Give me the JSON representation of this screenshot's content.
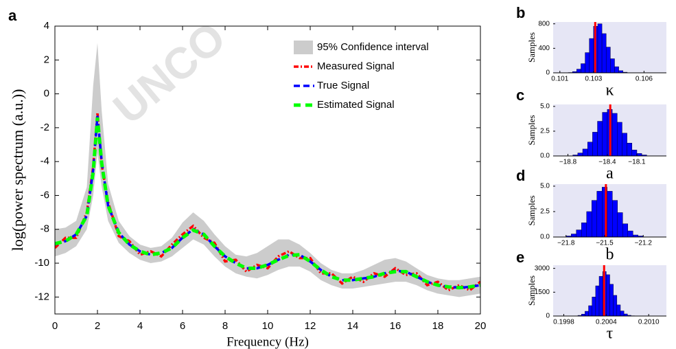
{
  "chart_data": [
    {
      "type": "line",
      "panel_label": "a",
      "watermark": "UNCO",
      "xlabel": "Frequency (Hz)",
      "ylabel": "log(power spectrum (a.u.))",
      "xlim": [
        0,
        20
      ],
      "ylim": [
        -13,
        4
      ],
      "xticks": [
        0,
        2,
        4,
        6,
        8,
        10,
        12,
        14,
        16,
        18,
        20
      ],
      "yticks": [
        -12,
        -10,
        -8,
        -6,
        -4,
        -2,
        0,
        2,
        4
      ],
      "legend": "upper right",
      "x": [
        0,
        0.5,
        1,
        1.5,
        1.8,
        2,
        2.2,
        2.5,
        3,
        3.5,
        4,
        4.5,
        5,
        5.5,
        6,
        6.5,
        7,
        7.5,
        8,
        8.5,
        9,
        9.5,
        10,
        10.5,
        11,
        11.5,
        12,
        12.5,
        13,
        13.5,
        14,
        14.5,
        15,
        15.5,
        16,
        16.5,
        17,
        17.5,
        18,
        18.5,
        19,
        19.5,
        20
      ],
      "band": {
        "name": "95% Confidence interval",
        "color": "#cccccc",
        "upper": [
          -8.0,
          -7.9,
          -7.5,
          -5.5,
          0.5,
          3.0,
          -1.0,
          -5.3,
          -7.5,
          -8.4,
          -8.9,
          -9.1,
          -9.0,
          -8.5,
          -7.6,
          -7.0,
          -7.5,
          -8.3,
          -9.0,
          -9.5,
          -9.6,
          -9.4,
          -9.0,
          -8.6,
          -8.6,
          -8.9,
          -9.4,
          -10.0,
          -10.4,
          -10.6,
          -10.6,
          -10.4,
          -10.1,
          -9.8,
          -9.7,
          -9.9,
          -10.3,
          -10.7,
          -10.9,
          -11.0,
          -11.0,
          -10.9,
          -10.8
        ],
        "lower": [
          -9.6,
          -9.4,
          -9.0,
          -8.0,
          -6.0,
          -3.5,
          -5.5,
          -7.5,
          -8.8,
          -9.4,
          -9.8,
          -10.0,
          -9.9,
          -9.6,
          -9.1,
          -8.6,
          -8.9,
          -9.6,
          -10.2,
          -10.6,
          -10.8,
          -10.9,
          -10.7,
          -10.4,
          -10.2,
          -10.2,
          -10.5,
          -11.0,
          -11.3,
          -11.5,
          -11.5,
          -11.4,
          -11.3,
          -11.2,
          -11.1,
          -11.1,
          -11.3,
          -11.6,
          -11.8,
          -11.9,
          -12.0,
          -11.9,
          -11.8
        ]
      },
      "series": [
        {
          "name": "Measured Signal",
          "color": "#ff0000",
          "values": [
            -9.1,
            -8.5,
            -8.5,
            -7.0,
            -4.3,
            -1.1,
            -4.2,
            -6.4,
            -8.4,
            -8.7,
            -9.5,
            -9.3,
            -9.6,
            -8.9,
            -8.3,
            -7.8,
            -8.5,
            -8.8,
            -9.9,
            -9.8,
            -10.5,
            -10.1,
            -10.3,
            -9.6,
            -9.3,
            -9.7,
            -9.7,
            -10.6,
            -10.6,
            -11.2,
            -10.8,
            -11.1,
            -10.6,
            -10.8,
            -10.3,
            -10.7,
            -10.6,
            -11.3,
            -11.1,
            -11.6,
            -11.3,
            -11.6,
            -11.1
          ]
        },
        {
          "name": "True Signal",
          "color": "#0000ff",
          "values": [
            -8.9,
            -8.7,
            -8.3,
            -7.2,
            -4.5,
            -1.3,
            -4.0,
            -6.6,
            -8.2,
            -8.9,
            -9.3,
            -9.5,
            -9.4,
            -9.1,
            -8.5,
            -8.0,
            -8.3,
            -9.0,
            -9.6,
            -10.0,
            -10.3,
            -10.3,
            -10.1,
            -9.8,
            -9.5,
            -9.5,
            -9.9,
            -10.4,
            -10.8,
            -11.0,
            -11.0,
            -10.9,
            -10.8,
            -10.6,
            -10.45,
            -10.5,
            -10.8,
            -11.1,
            -11.3,
            -11.4,
            -11.45,
            -11.4,
            -11.3
          ]
        },
        {
          "name": "Estimated Signal",
          "color": "#00ff00",
          "values": [
            -8.85,
            -8.7,
            -8.3,
            -7.2,
            -4.6,
            -1.4,
            -4.1,
            -6.6,
            -8.2,
            -8.9,
            -9.3,
            -9.5,
            -9.4,
            -9.1,
            -8.5,
            -8.05,
            -8.3,
            -9.0,
            -9.6,
            -10.0,
            -10.3,
            -10.3,
            -10.1,
            -9.8,
            -9.55,
            -9.5,
            -9.9,
            -10.4,
            -10.8,
            -11.0,
            -11.0,
            -10.9,
            -10.8,
            -10.6,
            -10.5,
            -10.5,
            -10.8,
            -11.1,
            -11.3,
            -11.4,
            -11.45,
            -11.4,
            -11.3
          ]
        }
      ]
    },
    {
      "type": "histogram",
      "panel_label": "b",
      "xlabel": "κ",
      "ylabel": "Samples",
      "color": "#0000ff",
      "marker_color": "#ff0000",
      "xlim": [
        0.1006,
        0.10733
      ],
      "ylim": [
        0,
        830
      ],
      "xticks": [
        0.101,
        0.103,
        0.106
      ],
      "yticks": [
        0,
        400,
        800
      ],
      "bins": [
        0.1015,
        0.10175,
        0.102,
        0.10225,
        0.1025,
        0.10275,
        0.103,
        0.10325,
        0.1035,
        0.10375,
        0.104,
        0.10425,
        0.1045,
        0.10475,
        0.105
      ],
      "values": [
        5,
        20,
        60,
        150,
        330,
        560,
        760,
        800,
        640,
        420,
        230,
        100,
        35,
        10
      ],
      "true_value": 0.1031
    },
    {
      "type": "histogram",
      "panel_label": "c",
      "xlabel": "a",
      "ylabel": "Samples",
      "color": "#0000ff",
      "marker_color": "#ff0000",
      "xlim": [
        -18.95,
        -17.8
      ],
      "ylim": [
        0,
        5.2
      ],
      "xticks": [
        {
          "value": -18.8,
          "label": "−18.8"
        },
        {
          "value": -18.4,
          "label": "−18.4"
        },
        {
          "value": -18.1,
          "label": "−18.1"
        }
      ],
      "yticks": [
        {
          "value": 0,
          "label": "0.0"
        },
        2.5,
        {
          "value": 5,
          "label": "5.0"
        }
      ],
      "bins": [
        -18.75,
        -18.7,
        -18.65,
        -18.6,
        -18.55,
        -18.5,
        -18.45,
        -18.4,
        -18.35,
        -18.3,
        -18.25,
        -18.2,
        -18.15,
        -18.1,
        -18.05,
        -18.0
      ],
      "values": [
        0.1,
        0.3,
        0.7,
        1.4,
        2.4,
        3.5,
        4.4,
        4.7,
        4.3,
        3.4,
        2.3,
        1.3,
        0.6,
        0.25,
        0.1
      ],
      "true_value": -18.37
    },
    {
      "type": "histogram",
      "panel_label": "d",
      "xlabel": "b",
      "ylabel": "Samples",
      "color": "#0000ff",
      "marker_color": "#ff0000",
      "xlim": [
        -21.9,
        -21.02
      ],
      "ylim": [
        0,
        5.2
      ],
      "xticks": [
        {
          "value": -21.8,
          "label": "−21.8"
        },
        {
          "value": -21.5,
          "label": "−21.5"
        },
        {
          "value": -21.2,
          "label": "−21.2"
        }
      ],
      "yticks": [
        {
          "value": 0,
          "label": "0.0"
        },
        2.5,
        {
          "value": 5,
          "label": "5.0"
        }
      ],
      "bins": [
        -21.8,
        -21.76,
        -21.72,
        -21.68,
        -21.64,
        -21.6,
        -21.56,
        -21.52,
        -21.48,
        -21.44,
        -21.4,
        -21.36,
        -21.32,
        -21.28,
        -21.24,
        -21.2
      ],
      "values": [
        0.1,
        0.3,
        0.7,
        1.4,
        2.5,
        3.6,
        4.5,
        4.9,
        4.5,
        3.6,
        2.4,
        1.3,
        0.6,
        0.2,
        0.1
      ],
      "true_value": -21.49
    },
    {
      "type": "histogram",
      "panel_label": "e",
      "xlabel": "τ",
      "ylabel": "Samples",
      "color": "#0000ff",
      "marker_color": "#ff0000",
      "xlim": [
        0.19965,
        0.20125
      ],
      "ylim": [
        0,
        3200
      ],
      "xticks": [
        0.1998,
        0.2004,
        {
          "value": 0.201,
          "label": "0.2010"
        }
      ],
      "yticks": [
        0,
        1500,
        3000
      ],
      "bins": [
        0.19995,
        0.2,
        0.20005,
        0.2001,
        0.20015,
        0.2002,
        0.20025,
        0.2003,
        0.20035,
        0.2004,
        0.20045,
        0.2005,
        0.20055,
        0.2006,
        0.20065,
        0.2007,
        0.20075,
        0.2008,
        0.20085
      ],
      "values": [
        10,
        40,
        120,
        300,
        650,
        1200,
        1900,
        2500,
        2800,
        2600,
        2000,
        1300,
        700,
        320,
        130,
        45,
        15,
        5
      ],
      "true_value": 0.20037
    }
  ]
}
